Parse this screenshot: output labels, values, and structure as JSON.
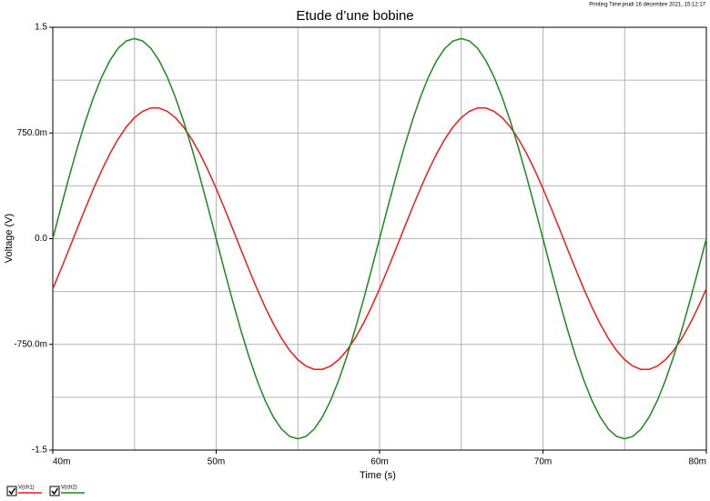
{
  "chart_data": {
    "type": "line",
    "title": "Etude d’une bobine",
    "note": "Printing Time:jeudi 16 décembre 2021, 15:12:17",
    "x_label": "Time (s)",
    "y_label": "Voltage (V)",
    "xlim": [
      0.04,
      0.08
    ],
    "xticks": [
      {
        "value": 0.04,
        "label": "40m"
      },
      {
        "value": 0.05,
        "label": "50m"
      },
      {
        "value": 0.06,
        "label": "60m"
      },
      {
        "value": 0.07,
        "label": "70m"
      },
      {
        "value": 0.08,
        "label": "80m"
      }
    ],
    "x_minor_ticks": [
      0.045,
      0.055,
      0.065,
      0.075
    ],
    "ylim": [
      -1.5,
      1.5
    ],
    "yticks": [
      -1.5,
      {
        "value": -0.75,
        "label": "-750.0m"
      },
      {
        "value": 0,
        "label": "0.0"
      },
      {
        "value": 0.75,
        "label": "750.0m"
      },
      1.5
    ],
    "y_minor_ticks": [
      -1.125,
      -0.375,
      0.375,
      1.125
    ],
    "grid": true,
    "legend": "bottom-left",
    "x": [
      0.04,
      0.0405,
      0.041,
      0.0415,
      0.042,
      0.0425,
      0.043,
      0.0435,
      0.044,
      0.0445,
      0.045,
      0.0455,
      0.046,
      0.0465,
      0.047,
      0.0475,
      0.048,
      0.0485,
      0.049,
      0.0495,
      0.05,
      0.0505,
      0.051,
      0.0515,
      0.052,
      0.0525,
      0.053,
      0.0535,
      0.054,
      0.0545,
      0.055,
      0.0555,
      0.056,
      0.0565,
      0.057,
      0.0575,
      0.058,
      0.0585,
      0.059,
      0.0595,
      0.06,
      0.0605,
      0.061,
      0.0615,
      0.062,
      0.0625,
      0.063,
      0.0635,
      0.064,
      0.0645,
      0.065,
      0.0655,
      0.066,
      0.0665,
      0.067,
      0.0675,
      0.068,
      0.0685,
      0.069,
      0.0695,
      0.07,
      0.0705,
      0.071,
      0.0715,
      0.072,
      0.0725,
      0.073,
      0.0735,
      0.074,
      0.0745,
      0.075,
      0.0755,
      0.076,
      0.0765,
      0.077,
      0.0775,
      0.078,
      0.0785,
      0.079,
      0.0795,
      0.08
    ],
    "series": [
      {
        "name": "V(ch1)",
        "color": "#ee1c1c",
        "values": [
          -0.356,
          -0.217,
          -0.073,
          0.073,
          0.217,
          0.356,
          0.486,
          0.604,
          0.707,
          0.793,
          0.859,
          0.904,
          0.927,
          0.927,
          0.904,
          0.859,
          0.793,
          0.707,
          0.604,
          0.486,
          0.356,
          0.217,
          0.073,
          -0.073,
          -0.217,
          -0.356,
          -0.486,
          -0.604,
          -0.707,
          -0.793,
          -0.859,
          -0.904,
          -0.927,
          -0.927,
          -0.904,
          -0.859,
          -0.793,
          -0.707,
          -0.604,
          -0.486,
          -0.356,
          -0.217,
          -0.073,
          0.073,
          0.217,
          0.356,
          0.486,
          0.604,
          0.707,
          0.793,
          0.859,
          0.904,
          0.927,
          0.927,
          0.904,
          0.859,
          0.793,
          0.707,
          0.604,
          0.486,
          0.356,
          0.217,
          0.073,
          -0.073,
          -0.217,
          -0.356,
          -0.486,
          -0.604,
          -0.707,
          -0.793,
          -0.859,
          -0.904,
          -0.927,
          -0.927,
          -0.904,
          -0.859,
          -0.793,
          -0.707,
          -0.604,
          -0.486,
          -0.356
        ]
      },
      {
        "name": "V(ch2)",
        "color": "#1a8a1a",
        "values": [
          0,
          0.222,
          0.439,
          0.645,
          0.835,
          1.004,
          1.149,
          1.265,
          1.351,
          1.403,
          1.42,
          1.403,
          1.351,
          1.265,
          1.149,
          1.004,
          0.835,
          0.645,
          0.439,
          0.222,
          0,
          -0.222,
          -0.439,
          -0.645,
          -0.835,
          -1.004,
          -1.149,
          -1.265,
          -1.351,
          -1.403,
          -1.42,
          -1.403,
          -1.351,
          -1.265,
          -1.149,
          -1.004,
          -0.835,
          -0.645,
          -0.439,
          -0.222,
          0,
          0.222,
          0.439,
          0.645,
          0.835,
          1.004,
          1.149,
          1.265,
          1.351,
          1.403,
          1.42,
          1.403,
          1.351,
          1.265,
          1.149,
          1.004,
          0.835,
          0.645,
          0.439,
          0.222,
          0,
          -0.222,
          -0.439,
          -0.645,
          -0.835,
          -1.004,
          -1.149,
          -1.265,
          -1.351,
          -1.403,
          -1.42,
          -1.403,
          -1.351,
          -1.265,
          -1.149,
          -1.004,
          -0.835,
          -0.645,
          -0.439,
          -0.222,
          0
        ]
      }
    ]
  }
}
